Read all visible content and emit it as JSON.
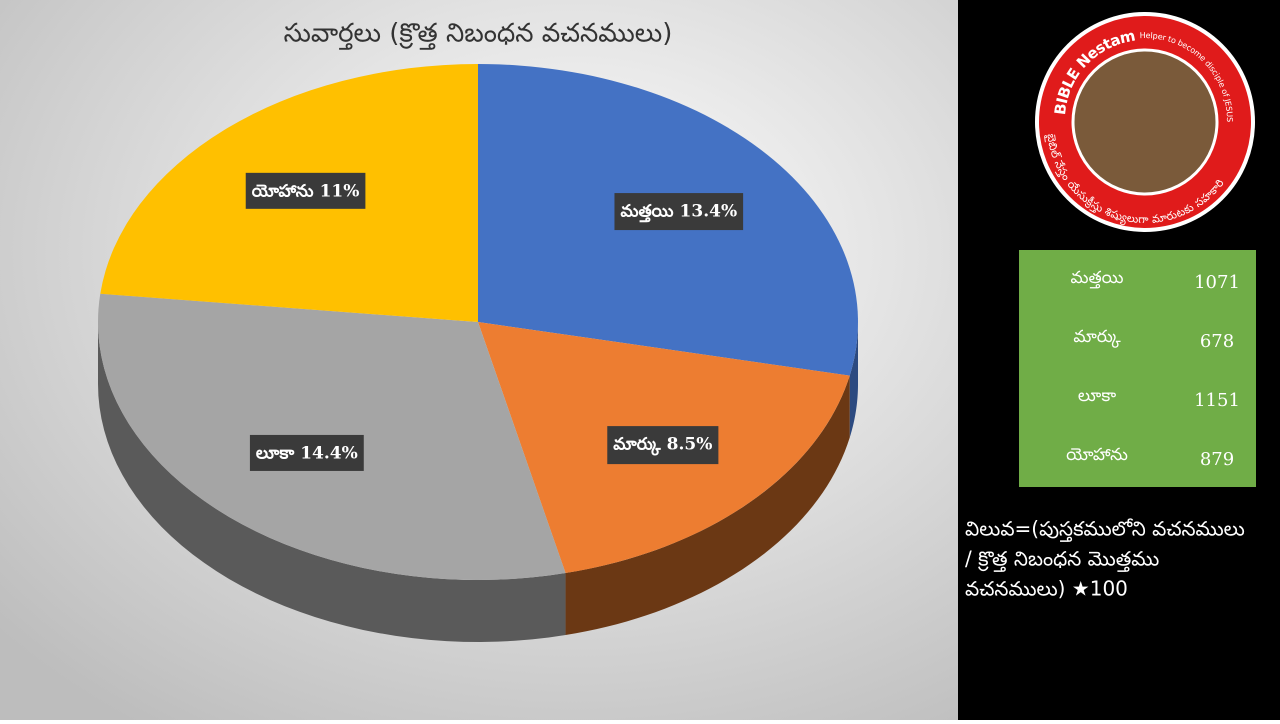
{
  "chart_data": {
    "type": "pie",
    "title": "సువార్తలు (క్రొత్త నిబంధన వచనములు)",
    "categories": [
      "మత్తయి",
      "మార్కు",
      "లూకా",
      "యోహాను"
    ],
    "values": [
      13.4,
      8.5,
      14.4,
      11
    ],
    "value_labels": [
      "13.4%",
      "8.5%",
      "14.4%",
      "11%"
    ],
    "colors": [
      "#4472c4",
      "#ed7d31",
      "#a5a5a5",
      "#ffc000"
    ],
    "side_colors": [
      "#2c4a80",
      "#6b3814",
      "#5a5a5a",
      "#8a6800"
    ]
  },
  "logo": {
    "name": "BIBLE Nestam",
    "tagline": "Helper to become disciple of JESUS CHRIST",
    "telugu": "బైబిల్ నేస్తం యేసుక్రీస్తు శిష్యులుగా మారుటకు సహకారి"
  },
  "table": {
    "rows": [
      [
        "మత్తయి",
        1071
      ],
      [
        "మార్కు",
        678
      ],
      [
        "లూకా",
        1151
      ],
      [
        "యోహాను",
        879
      ]
    ]
  },
  "note": {
    "lines": [
      "విలువ=(పుస్తకములోని వచనములు",
      "/ క్రొత్త నిబంధన మొత్తము",
      "వచనములు) ★100"
    ]
  }
}
